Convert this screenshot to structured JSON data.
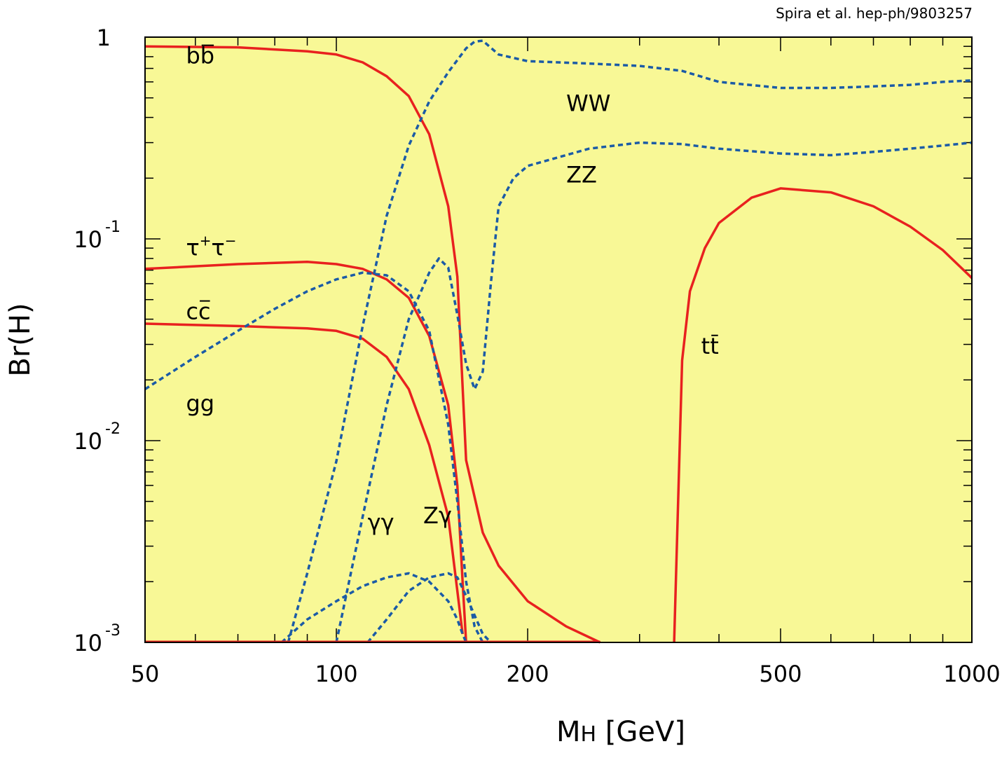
{
  "colors": {
    "plot_background": "#f8f896",
    "fermion_line": "#e8211f",
    "boson_line": "#1b5ba6",
    "frame": "#000000"
  },
  "credit": "Spira et al. hep-ph/9803257",
  "chart_data": {
    "type": "line",
    "title": "",
    "xlabel": {
      "main": "M",
      "sub": "H",
      "rest": " [GeV]"
    },
    "ylabel": "Br(H)",
    "xscale": "log",
    "yscale": "log",
    "xlim": [
      50,
      1000
    ],
    "ylim": [
      0.001,
      1
    ],
    "x_tick_labels": [
      {
        "value": 50,
        "label": "50"
      },
      {
        "value": 100,
        "label": "100"
      },
      {
        "value": 200,
        "label": "200"
      },
      {
        "value": 500,
        "label": "500"
      },
      {
        "value": 1000,
        "label": "1000"
      }
    ],
    "y_tick_labels": [
      {
        "value": 1,
        "base": "1",
        "exp": ""
      },
      {
        "value": 0.1,
        "base": "10",
        "exp": "-1"
      },
      {
        "value": 0.01,
        "base": "10",
        "exp": "-2"
      },
      {
        "value": 0.001,
        "base": "10",
        "exp": "-3"
      }
    ],
    "series": [
      {
        "name": "bb-bar",
        "style": "solid",
        "points": [
          [
            50,
            0.9
          ],
          [
            70,
            0.89
          ],
          [
            90,
            0.85
          ],
          [
            100,
            0.82
          ],
          [
            110,
            0.75
          ],
          [
            120,
            0.64
          ],
          [
            130,
            0.51
          ],
          [
            140,
            0.33
          ],
          [
            150,
            0.145
          ],
          [
            155,
            0.065
          ],
          [
            160,
            0.008
          ],
          [
            170,
            0.0035
          ],
          [
            180,
            0.0024
          ],
          [
            200,
            0.0016
          ],
          [
            230,
            0.0012
          ],
          [
            260,
            0.001
          ]
        ],
        "label": {
          "base": "bb",
          "overline": "b",
          "x": 58,
          "y": 0.74
        }
      },
      {
        "name": "tau-tau",
        "style": "solid",
        "points": [
          [
            50,
            0.071
          ],
          [
            70,
            0.075
          ],
          [
            90,
            0.077
          ],
          [
            100,
            0.075
          ],
          [
            110,
            0.071
          ],
          [
            120,
            0.063
          ],
          [
            130,
            0.051
          ],
          [
            140,
            0.033
          ],
          [
            150,
            0.015
          ],
          [
            155,
            0.006
          ],
          [
            158,
            0.002
          ],
          [
            160,
            0.001
          ]
        ],
        "label": {
          "base": "τ",
          "sup1": "+",
          "base2": "τ",
          "sup2": "−",
          "x": 58,
          "y": 0.083
        }
      },
      {
        "name": "cc-bar",
        "style": "solid",
        "points": [
          [
            50,
            0.038
          ],
          [
            70,
            0.037
          ],
          [
            90,
            0.036
          ],
          [
            100,
            0.035
          ],
          [
            110,
            0.032
          ],
          [
            120,
            0.026
          ],
          [
            130,
            0.018
          ],
          [
            140,
            0.0095
          ],
          [
            150,
            0.0042
          ],
          [
            155,
            0.0018
          ],
          [
            158,
            0.0011
          ]
        ],
        "label": {
          "base": "cc",
          "overline": "c",
          "x": 58,
          "y": 0.04
        }
      },
      {
        "name": "tt-bar",
        "style": "solid",
        "points": [
          [
            340,
            0.001
          ],
          [
            345,
            0.005
          ],
          [
            350,
            0.025
          ],
          [
            360,
            0.055
          ],
          [
            380,
            0.09
          ],
          [
            400,
            0.12
          ],
          [
            450,
            0.16
          ],
          [
            500,
            0.178
          ],
          [
            600,
            0.17
          ],
          [
            700,
            0.145
          ],
          [
            800,
            0.115
          ],
          [
            900,
            0.088
          ],
          [
            1000,
            0.064
          ]
        ],
        "label": {
          "base": "tt",
          "overline": "t",
          "x": 375,
          "y": 0.027
        }
      },
      {
        "name": "WW",
        "style": "dashed",
        "points": [
          [
            84,
            0.001
          ],
          [
            90,
            0.0022
          ],
          [
            100,
            0.0079
          ],
          [
            110,
            0.037
          ],
          [
            120,
            0.13
          ],
          [
            130,
            0.29
          ],
          [
            140,
            0.48
          ],
          [
            150,
            0.67
          ],
          [
            160,
            0.88
          ],
          [
            165,
            0.95
          ],
          [
            170,
            0.96
          ],
          [
            180,
            0.82
          ],
          [
            200,
            0.76
          ],
          [
            250,
            0.74
          ],
          [
            300,
            0.72
          ],
          [
            350,
            0.68
          ],
          [
            400,
            0.6
          ],
          [
            500,
            0.56
          ],
          [
            600,
            0.56
          ],
          [
            700,
            0.57
          ],
          [
            800,
            0.58
          ],
          [
            900,
            0.6
          ],
          [
            1000,
            0.61
          ]
        ],
        "label": {
          "base": "WW",
          "x": 230,
          "y": 0.43
        }
      },
      {
        "name": "ZZ",
        "style": "dashed",
        "points": [
          [
            100,
            0.001
          ],
          [
            110,
            0.0042
          ],
          [
            120,
            0.015
          ],
          [
            130,
            0.04
          ],
          [
            140,
            0.068
          ],
          [
            145,
            0.08
          ],
          [
            150,
            0.072
          ],
          [
            155,
            0.042
          ],
          [
            160,
            0.024
          ],
          [
            165,
            0.018
          ],
          [
            170,
            0.022
          ],
          [
            175,
            0.06
          ],
          [
            180,
            0.145
          ],
          [
            190,
            0.2
          ],
          [
            200,
            0.23
          ],
          [
            250,
            0.28
          ],
          [
            300,
            0.3
          ],
          [
            350,
            0.295
          ],
          [
            400,
            0.28
          ],
          [
            500,
            0.265
          ],
          [
            600,
            0.26
          ],
          [
            700,
            0.27
          ],
          [
            800,
            0.28
          ],
          [
            900,
            0.29
          ],
          [
            1000,
            0.3
          ]
        ],
        "label": {
          "base": "ZZ",
          "x": 230,
          "y": 0.19
        }
      },
      {
        "name": "gg",
        "style": "dashed",
        "points": [
          [
            50,
            0.018
          ],
          [
            60,
            0.026
          ],
          [
            70,
            0.035
          ],
          [
            80,
            0.045
          ],
          [
            90,
            0.055
          ],
          [
            100,
            0.063
          ],
          [
            110,
            0.068
          ],
          [
            120,
            0.066
          ],
          [
            130,
            0.055
          ],
          [
            140,
            0.035
          ],
          [
            150,
            0.012
          ],
          [
            155,
            0.005
          ],
          [
            160,
            0.002
          ],
          [
            165,
            0.0012
          ],
          [
            170,
            0.001
          ]
        ],
        "label": {
          "base": "gg",
          "x": 58,
          "y": 0.014
        }
      },
      {
        "name": "gamma-gamma",
        "style": "dashed",
        "points": [
          [
            82,
            0.001
          ],
          [
            90,
            0.0013
          ],
          [
            100,
            0.0016
          ],
          [
            110,
            0.0019
          ],
          [
            120,
            0.0021
          ],
          [
            130,
            0.0022
          ],
          [
            140,
            0.002
          ],
          [
            150,
            0.0016
          ],
          [
            155,
            0.0013
          ],
          [
            158,
            0.0011
          ],
          [
            160,
            0.001
          ]
        ],
        "label": {
          "base": "γγ",
          "x": 112,
          "y": 0.0036
        }
      },
      {
        "name": "Z-gamma",
        "style": "dashed",
        "points": [
          [
            112,
            0.001
          ],
          [
            120,
            0.0013
          ],
          [
            130,
            0.0018
          ],
          [
            140,
            0.0021
          ],
          [
            150,
            0.0022
          ],
          [
            155,
            0.0021
          ],
          [
            160,
            0.0017
          ],
          [
            170,
            0.0011
          ],
          [
            175,
            0.001
          ]
        ],
        "label": {
          "base": "Zγ",
          "x": 137,
          "y": 0.0039
        }
      }
    ]
  }
}
